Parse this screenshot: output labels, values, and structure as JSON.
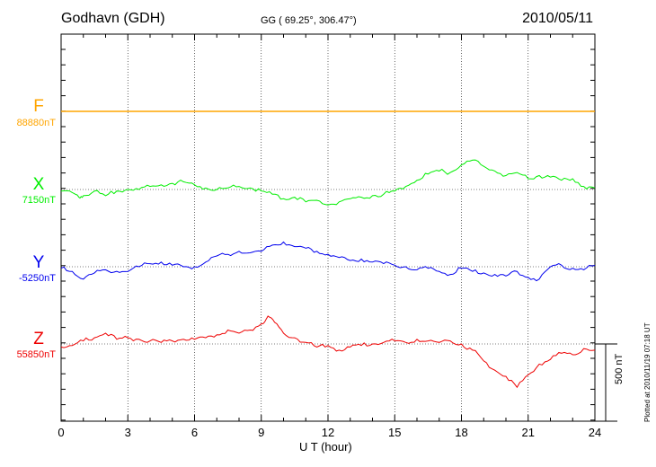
{
  "header": {
    "station": "Godhavn (GDH)",
    "coords": "GG ( 69.25°, 306.47°)",
    "date": "2010/05/11"
  },
  "footer": {
    "plotted": "Plotted at 2010/11/19 07:18 UT"
  },
  "chart_data": {
    "type": "line",
    "title": "Godhavn (GDH)",
    "xlabel": "U T (hour)",
    "xlim": [
      0,
      24
    ],
    "xticks": [
      "0",
      "3",
      "6",
      "9",
      "12",
      "15",
      "18",
      "21",
      "24"
    ],
    "scale_bar": "500 nT",
    "grid": true,
    "series": [
      {
        "name": "F",
        "baseline": "88880nT",
        "color": "#ffa500",
        "x": [
          0,
          24
        ],
        "y": [
          0,
          0
        ]
      },
      {
        "name": "X",
        "baseline": "7150nT",
        "color": "#00ee00",
        "x": [
          0,
          0.5,
          0.8,
          1,
          1.5,
          2,
          2.5,
          3,
          3.5,
          4,
          4.5,
          5,
          5.5,
          6,
          6.5,
          7,
          7.5,
          8,
          8.5,
          9,
          9.5,
          10,
          10.5,
          11,
          11.5,
          12,
          12.5,
          13,
          13.5,
          14,
          14.5,
          15,
          15.5,
          16,
          16.5,
          17,
          17.5,
          18,
          18.5,
          19,
          19.5,
          20,
          20.5,
          21,
          21.5,
          22,
          22.5,
          23,
          23.5,
          24
        ],
        "y": [
          -10,
          -20,
          -50,
          -40,
          -10,
          -40,
          -10,
          0,
          0,
          20,
          30,
          40,
          50,
          30,
          10,
          0,
          10,
          20,
          10,
          -10,
          -30,
          -60,
          -50,
          -80,
          -70,
          -100,
          -80,
          -60,
          -50,
          -40,
          -30,
          -10,
          20,
          60,
          100,
          120,
          110,
          160,
          190,
          150,
          120,
          90,
          110,
          70,
          90,
          80,
          60,
          70,
          20,
          10
        ]
      },
      {
        "name": "Y",
        "baseline": "-5250nT",
        "color": "#0000ee",
        "x": [
          0,
          0.5,
          1,
          1.5,
          2,
          2.5,
          3,
          3.5,
          4,
          4.5,
          5,
          5.5,
          6,
          6.5,
          7,
          7.5,
          8,
          8.5,
          9,
          9.5,
          10,
          10.5,
          11,
          11.5,
          12,
          12.5,
          13,
          13.5,
          14,
          14.5,
          15,
          15.5,
          16,
          16.5,
          17,
          17.5,
          18,
          18.5,
          19,
          19.5,
          20,
          20.5,
          21,
          21.5,
          22,
          22.5,
          23,
          23.5,
          24
        ],
        "y": [
          -10,
          -30,
          -80,
          -40,
          -20,
          -30,
          -30,
          0,
          20,
          30,
          10,
          0,
          0,
          30,
          70,
          80,
          100,
          90,
          100,
          140,
          160,
          130,
          120,
          100,
          80,
          60,
          40,
          50,
          30,
          20,
          10,
          0,
          -20,
          -10,
          -30,
          -50,
          -10,
          -30,
          -40,
          -50,
          -60,
          -30,
          -70,
          -80,
          0,
          10,
          -10,
          -20,
          10
        ]
      },
      {
        "name": "Z",
        "baseline": "55850nT",
        "color": "#ee0000",
        "x": [
          0,
          0.5,
          1,
          1.5,
          2,
          2.5,
          3,
          3.5,
          4,
          4.5,
          5,
          5.5,
          6,
          6.5,
          7,
          7.5,
          8,
          8.5,
          9,
          9.3,
          9.6,
          10,
          10.5,
          11,
          11.5,
          12,
          12.5,
          13,
          13.5,
          14,
          14.5,
          15,
          15.5,
          16,
          16.5,
          17,
          17.5,
          18,
          18.5,
          19,
          19.5,
          20,
          20.5,
          21,
          21.5,
          22,
          22.5,
          23,
          23.5,
          24
        ],
        "y": [
          -20,
          -10,
          20,
          40,
          70,
          30,
          40,
          30,
          20,
          10,
          20,
          30,
          30,
          40,
          60,
          90,
          70,
          90,
          130,
          180,
          140,
          70,
          40,
          10,
          -20,
          -10,
          -40,
          -20,
          -10,
          0,
          10,
          20,
          10,
          30,
          20,
          10,
          20,
          0,
          -40,
          -110,
          -170,
          -210,
          -280,
          -200,
          -130,
          -100,
          -60,
          -70,
          -30,
          -40
        ]
      }
    ]
  }
}
